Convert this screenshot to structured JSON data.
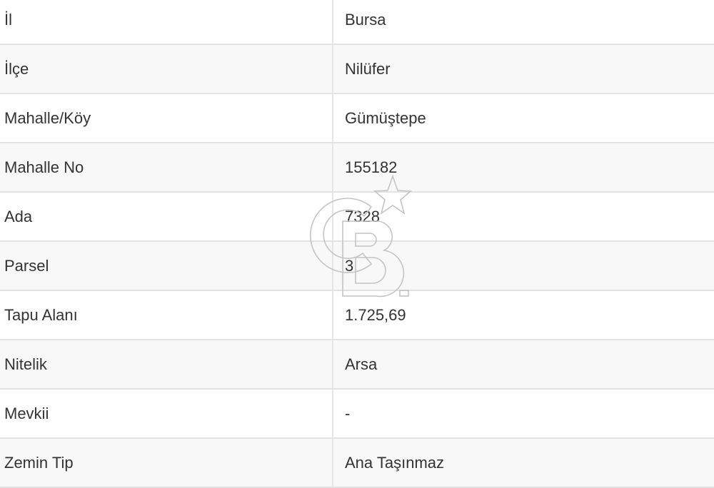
{
  "rows": [
    {
      "label": "İl",
      "value": "Bursa"
    },
    {
      "label": "İlçe",
      "value": "Nilüfer"
    },
    {
      "label": "Mahalle/Köy",
      "value": "Gümüştepe"
    },
    {
      "label": "Mahalle No",
      "value": "155182"
    },
    {
      "label": "Ada",
      "value": "7328"
    },
    {
      "label": "Parsel",
      "value": "3"
    },
    {
      "label": "Tapu Alanı",
      "value": "1.725,69"
    },
    {
      "label": "Nitelik",
      "value": "Arsa"
    },
    {
      "label": "Mevkii",
      "value": "-"
    },
    {
      "label": "Zemin Tip",
      "value": "Ana Taşınmaz"
    }
  ],
  "watermark": {
    "logo_text": "CB",
    "mark": "SM",
    "color": "#bdbdbd"
  }
}
